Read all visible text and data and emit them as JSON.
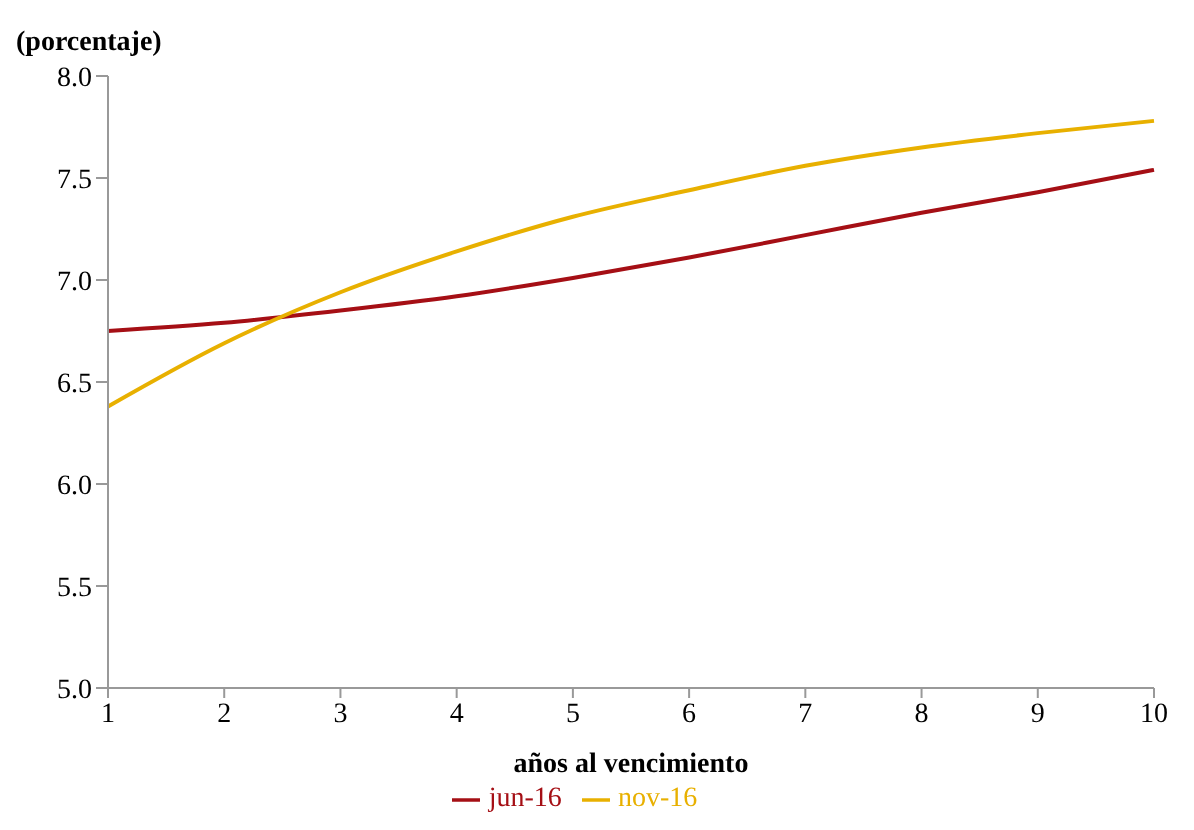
{
  "chart_data": {
    "type": "line",
    "ylabel": "(porcentaje)",
    "xlabel": "años al vencimiento",
    "categories": [
      "1",
      "2",
      "3",
      "4",
      "5",
      "6",
      "7",
      "8",
      "9",
      "10"
    ],
    "series": [
      {
        "name": "jun-16",
        "color": "#a50f15",
        "values": [
          6.75,
          6.79,
          6.85,
          6.92,
          7.01,
          7.11,
          7.22,
          7.33,
          7.43,
          7.54
        ]
      },
      {
        "name": "nov-16",
        "color": "#e8b000",
        "values": [
          6.38,
          6.69,
          6.94,
          7.14,
          7.31,
          7.44,
          7.56,
          7.65,
          7.72,
          7.78
        ]
      }
    ],
    "ylim": [
      5.0,
      8.0
    ],
    "yticks": [
      {
        "value": 5,
        "label": "5.0"
      },
      {
        "value": 5.5,
        "label": "5.5"
      },
      {
        "value": 6,
        "label": "6.0"
      },
      {
        "value": 6.5,
        "label": "6.5"
      },
      {
        "value": 7,
        "label": "7.0"
      },
      {
        "value": 7.5,
        "label": "7.5"
      },
      {
        "value": 8,
        "label": "8.0"
      }
    ],
    "grid": false,
    "legend": "bottom",
    "marker": "none",
    "line_style": "solid"
  }
}
